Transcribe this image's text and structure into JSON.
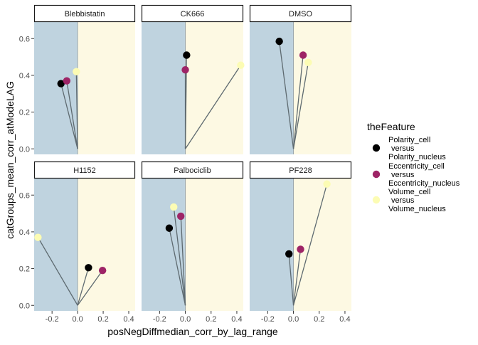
{
  "chart_data": {
    "type": "scatter",
    "xlabel": "posNegDiffmedian_corr_by_lag_range",
    "ylabel": "catGroups_mean_corr_atModeLAG",
    "xlim": [
      -0.34,
      0.45
    ],
    "ylim": [
      -0.03,
      0.69
    ],
    "x_ticks": [
      -0.2,
      0.0,
      0.2,
      0.4
    ],
    "x_tick_labels": [
      "-0.2",
      "0.0",
      "0.2",
      "0.4"
    ],
    "y_ticks": [
      0.0,
      0.2,
      0.4,
      0.6
    ],
    "y_tick_labels": [
      "0.0",
      "0.2",
      "0.4",
      "0.6"
    ],
    "grid": false,
    "background_negative": "#bfd3df",
    "background_positive": "#fdf9e3",
    "segment_color": "#5e6a70",
    "legend": {
      "title": "theFeature",
      "placement": "right",
      "entries": [
        {
          "label_lines": [
            "Polarity_cell",
            "versus",
            "Polarity_nucleus"
          ],
          "color": "#000000"
        },
        {
          "label_lines": [
            "Eccentricity_cell",
            "versus",
            "Eccentricity_nucleus"
          ],
          "color": "#9e2466"
        },
        {
          "label_lines": [
            "Volume_cell",
            "versus",
            "Volume_nucleus"
          ],
          "color": "#fcfcb4"
        }
      ]
    },
    "series": [
      {
        "name": "Polarity_cell versus Polarity_nucleus",
        "color": "#000000"
      },
      {
        "name": "Eccentricity_cell versus Eccentricity_nucleus",
        "color": "#9e2466"
      },
      {
        "name": "Volume_cell versus Volume_nucleus",
        "color": "#fcfcb4"
      }
    ],
    "panels": [
      {
        "title": "Blebbistatin",
        "points": [
          {
            "series": 0,
            "x": -0.13,
            "y": 0.355
          },
          {
            "series": 1,
            "x": -0.085,
            "y": 0.37
          },
          {
            "series": 2,
            "x": -0.01,
            "y": 0.42
          }
        ]
      },
      {
        "title": "CK666",
        "points": [
          {
            "series": 0,
            "x": 0.01,
            "y": 0.51
          },
          {
            "series": 1,
            "x": 0.0,
            "y": 0.43
          },
          {
            "series": 2,
            "x": 0.43,
            "y": 0.455
          }
        ]
      },
      {
        "title": "DMSO",
        "points": [
          {
            "series": 0,
            "x": -0.11,
            "y": 0.585
          },
          {
            "series": 1,
            "x": 0.075,
            "y": 0.51
          },
          {
            "series": 2,
            "x": 0.115,
            "y": 0.47
          }
        ]
      },
      {
        "title": "H1152",
        "points": [
          {
            "series": 0,
            "x": 0.085,
            "y": 0.205
          },
          {
            "series": 1,
            "x": 0.195,
            "y": 0.19
          },
          {
            "series": 2,
            "x": -0.31,
            "y": 0.37
          }
        ]
      },
      {
        "title": "Palbociclib",
        "points": [
          {
            "series": 0,
            "x": -0.125,
            "y": 0.42
          },
          {
            "series": 1,
            "x": -0.035,
            "y": 0.485
          },
          {
            "series": 2,
            "x": -0.09,
            "y": 0.535
          }
        ]
      },
      {
        "title": "PF228",
        "points": [
          {
            "series": 0,
            "x": -0.035,
            "y": 0.28
          },
          {
            "series": 1,
            "x": 0.055,
            "y": 0.305
          },
          {
            "series": 2,
            "x": 0.26,
            "y": 0.66
          }
        ]
      }
    ]
  }
}
